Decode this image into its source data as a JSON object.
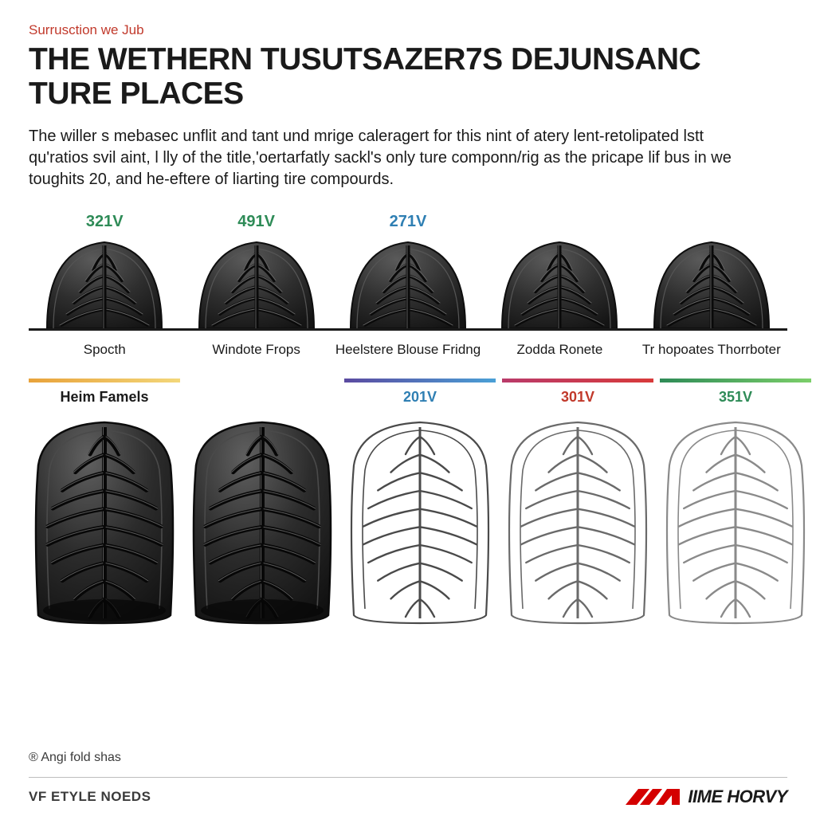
{
  "eyebrow": {
    "text": "Surrusction we Jub",
    "color": "#c1392b"
  },
  "title": "THE WETHERN TUSUTSAZER7S DEJUNSANC TURE PLACES",
  "body": "The willer s mebasec unflit and tant und mrige caleragert for this nint of atery lent-retolipated lstt qu'ratios svil aint, l lly of the title,'oertarfatly sackl's only ture componn/rig as the pricape lif bus in we toughits 20, and he-eftere of liarting tire compourds.",
  "top_tires": [
    {
      "value": "321V",
      "value_color": "#2e8b57",
      "label": "Spocth"
    },
    {
      "value": "491V",
      "value_color": "#2e8b57",
      "label": "Windote Frops"
    },
    {
      "value": "271V",
      "value_color": "#2f7fb3",
      "label": "Heelstere Blouse Fridng"
    },
    {
      "value": "",
      "value_color": "#2f7fb3",
      "label": "Zodda Ronete"
    },
    {
      "value": "",
      "value_color": "#2f7fb3",
      "label": "Tr hopoates Thorrboter"
    }
  ],
  "bottom_cols": [
    {
      "gradient": [
        "#e8a23a",
        "#f3d77a"
      ],
      "label": "Heim Famels",
      "label_color": "#1a1a1a",
      "filled": true,
      "stroke": "#2a2a2a"
    },
    {
      "gradient": [
        "#ffffff",
        "#ffffff"
      ],
      "label": "",
      "label_color": "#1a1a1a",
      "filled": true,
      "stroke": "#2a2a2a"
    },
    {
      "gradient": [
        "#5b4aa0",
        "#4aa0d6"
      ],
      "label": "201V",
      "label_color": "#2f7fb3",
      "filled": false,
      "stroke": "#4a4a4a"
    },
    {
      "gradient": [
        "#b93a6a",
        "#d83a3a"
      ],
      "label": "301V",
      "label_color": "#c1392b",
      "filled": false,
      "stroke": "#6a6a6a"
    },
    {
      "gradient": [
        "#2e8b57",
        "#7ccf6a"
      ],
      "label": "351V",
      "label_color": "#2e8b57",
      "filled": false,
      "stroke": "#8a8a8a"
    }
  ],
  "trademark": "® Angi fold shas",
  "footer_left": "VF ETYLE NOEDS",
  "footer_brand": "IIME HORVY",
  "tire_colors": {
    "dark_fill": "#2a2a2a",
    "dark_fill_light": "#4a4a4a",
    "outline": "#6b6b6b",
    "highlight": "#bfbfbf"
  },
  "logo_color": "#d40000"
}
